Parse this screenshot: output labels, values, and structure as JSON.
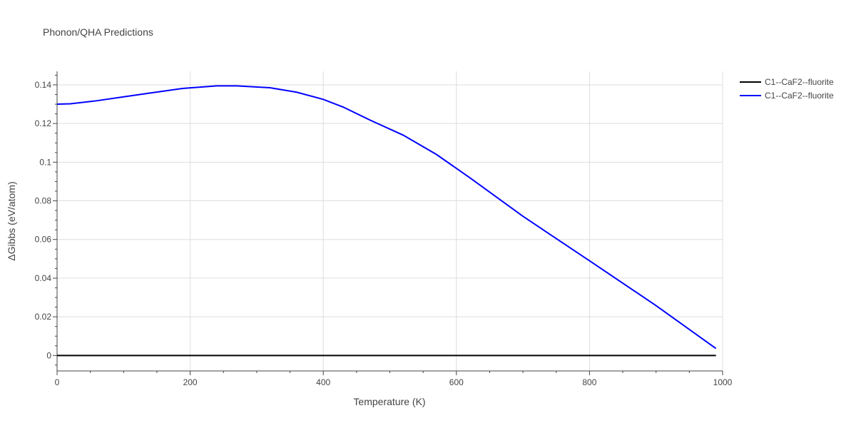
{
  "chart_data": {
    "type": "line",
    "title": "Phonon/QHA Predictions",
    "xlabel": "Temperature (K)",
    "ylabel": "ΔGibbs (eV/atom)",
    "xlim": [
      0,
      1000
    ],
    "ylim": [
      -0.008,
      0.147
    ],
    "x_ticks": [
      0,
      200,
      400,
      600,
      800,
      1000
    ],
    "x_tick_labels": [
      "0",
      "200",
      "400",
      "600",
      "800",
      "1000"
    ],
    "y_ticks": [
      0,
      0.02,
      0.04,
      0.06,
      0.08,
      0.1,
      0.12,
      0.14
    ],
    "y_tick_labels": [
      "0",
      "0.02",
      "0.04",
      "0.06",
      "0.08",
      "0.1",
      "0.12",
      "0.14"
    ],
    "grid": true,
    "legend_position": "top-right",
    "series": [
      {
        "name": "C1--CaF2--fluorite",
        "color": "#000000",
        "x": [
          0,
          990
        ],
        "y": [
          0,
          0
        ]
      },
      {
        "name": "C1--CaF2--fluorite",
        "color": "#0000ff",
        "x": [
          0,
          20,
          60,
          100,
          140,
          190,
          240,
          270,
          320,
          360,
          400,
          430,
          470,
          520,
          570,
          620,
          700,
          800,
          900,
          990
        ],
        "y": [
          0.13,
          0.1302,
          0.1318,
          0.1338,
          0.1358,
          0.1382,
          0.1395,
          0.1395,
          0.1385,
          0.1362,
          0.1325,
          0.1285,
          0.1218,
          0.114,
          0.104,
          0.092,
          0.072,
          0.049,
          0.0258,
          0.0036
        ]
      }
    ]
  }
}
